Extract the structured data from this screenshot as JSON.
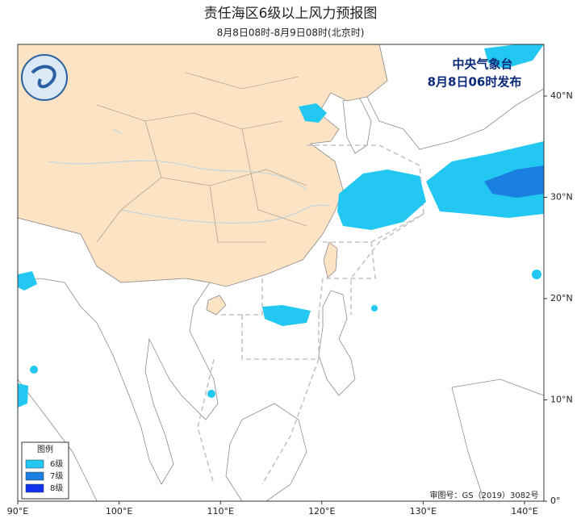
{
  "header": {
    "title": "责任海区6级以上风力预报图",
    "subtitle": "8月8日08时-8月9日08时(北京时)"
  },
  "publisher": {
    "name": "中央气象台",
    "issued": "8月8日06时发布"
  },
  "legend": {
    "title": "图例",
    "items": [
      {
        "label": "6级",
        "color": "#22c8f2"
      },
      {
        "label": "7级",
        "color": "#1a7fe0"
      },
      {
        "label": "8级",
        "color": "#1133ee"
      }
    ]
  },
  "axes": {
    "longitude": [
      "90°E",
      "100°E",
      "110°E",
      "120°E",
      "130°E",
      "140°E"
    ],
    "latitude": [
      "40°N",
      "30°N",
      "20°N",
      "10°N",
      "0°"
    ]
  },
  "footer": {
    "approval": "审图号：GS（2019）3082号"
  }
}
